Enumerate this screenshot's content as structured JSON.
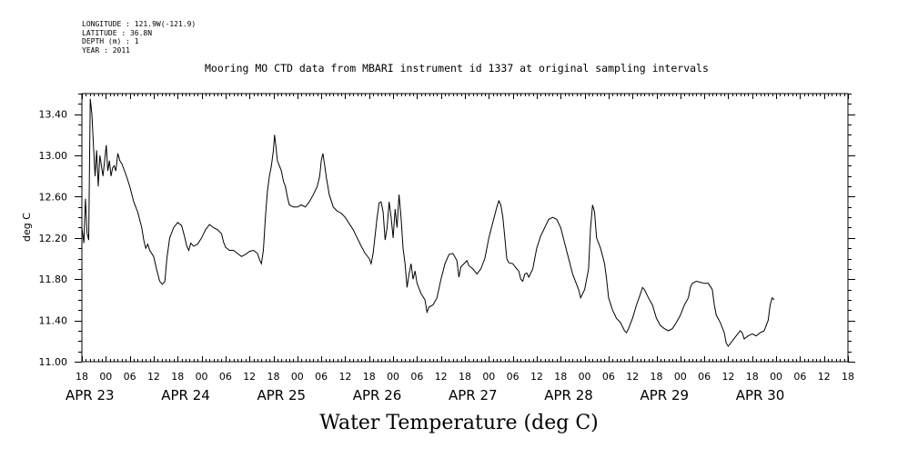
{
  "header": {
    "meta_lines": [
      "LONGITUDE : 121.9W(-121.9)",
      "LATITUDE : 36.8N",
      "DEPTH (m) : 1",
      "YEAR : 2011"
    ],
    "title": "Mooring MO CTD data from MBARI instrument id 1337 at original sampling intervals"
  },
  "chart_data": {
    "type": "line",
    "title": "Mooring MO CTD data from MBARI instrument id 1337 at original sampling intervals",
    "xlabel": "Water Temperature (deg C)",
    "ylabel": "deg C",
    "x_units": "hours since APR 22 18:00 (2011)",
    "xlim": [
      0,
      192
    ],
    "ylim": [
      11.0,
      13.6
    ],
    "y_ticks": [
      11.0,
      11.4,
      11.8,
      12.2,
      12.6,
      13.0,
      13.4
    ],
    "y_tick_labels": [
      "11.00",
      "11.40",
      "11.80",
      "12.20",
      "12.60",
      "13.00",
      "13.40"
    ],
    "x_hour_ticks": [
      0,
      6,
      12,
      18,
      24,
      30,
      36,
      42,
      48,
      54,
      60,
      66,
      72,
      78,
      84,
      90,
      96,
      102,
      108,
      114,
      120,
      126,
      132,
      138,
      144,
      150,
      156,
      162,
      168,
      174,
      180,
      186,
      192
    ],
    "x_hour_labels": [
      "18",
      "00",
      "06",
      "12",
      "18",
      "00",
      "06",
      "12",
      "18",
      "00",
      "06",
      "12",
      "18",
      "00",
      "06",
      "12",
      "18",
      "00",
      "06",
      "12",
      "18",
      "00",
      "06",
      "12",
      "18",
      "00",
      "06",
      "12",
      "18",
      "00",
      "06",
      "12",
      "18"
    ],
    "x_day_labels": [
      {
        "label": "APR 23",
        "hour": 0
      },
      {
        "label": "APR 24",
        "hour": 24
      },
      {
        "label": "APR 25",
        "hour": 48
      },
      {
        "label": "APR 26",
        "hour": 72
      },
      {
        "label": "APR 27",
        "hour": 96
      },
      {
        "label": "APR 28",
        "hour": 120
      },
      {
        "label": "APR 29",
        "hour": 144
      },
      {
        "label": "APR 30",
        "hour": 168
      }
    ],
    "grid": false,
    "series": [
      {
        "points": [
          [
            0,
            12.3
          ],
          [
            0.5,
            12.15
          ],
          [
            0.9,
            12.58
          ],
          [
            1.3,
            12.25
          ],
          [
            1.7,
            12.18
          ],
          [
            2.1,
            13.55
          ],
          [
            2.5,
            13.4
          ],
          [
            2.9,
            13.1
          ],
          [
            3.3,
            12.8
          ],
          [
            3.7,
            13.05
          ],
          [
            4.1,
            12.7
          ],
          [
            4.5,
            13.0
          ],
          [
            4.9,
            12.9
          ],
          [
            5.3,
            12.8
          ],
          [
            5.7,
            12.95
          ],
          [
            6.1,
            13.1
          ],
          [
            6.5,
            12.85
          ],
          [
            6.9,
            12.95
          ],
          [
            7.3,
            12.8
          ],
          [
            7.7,
            12.88
          ],
          [
            8.1,
            12.9
          ],
          [
            8.5,
            12.85
          ],
          [
            9.0,
            13.02
          ],
          [
            9.5,
            12.95
          ],
          [
            10.0,
            12.92
          ],
          [
            11,
            12.82
          ],
          [
            12,
            12.7
          ],
          [
            13,
            12.55
          ],
          [
            14,
            12.45
          ],
          [
            15,
            12.3
          ],
          [
            15.5,
            12.18
          ],
          [
            16,
            12.1
          ],
          [
            16.5,
            12.14
          ],
          [
            17,
            12.08
          ],
          [
            18,
            12.02
          ],
          [
            18.7,
            11.9
          ],
          [
            19.5,
            11.78
          ],
          [
            20.2,
            11.75
          ],
          [
            20.8,
            11.78
          ],
          [
            21.3,
            12.0
          ],
          [
            22,
            12.2
          ],
          [
            23,
            12.3
          ],
          [
            24,
            12.35
          ],
          [
            25,
            12.32
          ],
          [
            25.7,
            12.22
          ],
          [
            26.3,
            12.12
          ],
          [
            26.8,
            12.08
          ],
          [
            27.3,
            12.15
          ],
          [
            28,
            12.12
          ],
          [
            29,
            12.14
          ],
          [
            30,
            12.2
          ],
          [
            31,
            12.28
          ],
          [
            32,
            12.33
          ],
          [
            33,
            12.3
          ],
          [
            34,
            12.28
          ],
          [
            35,
            12.24
          ],
          [
            35.5,
            12.16
          ],
          [
            36,
            12.11
          ],
          [
            37,
            12.08
          ],
          [
            38,
            12.08
          ],
          [
            39,
            12.05
          ],
          [
            40,
            12.02
          ],
          [
            41,
            12.04
          ],
          [
            42,
            12.07
          ],
          [
            43,
            12.08
          ],
          [
            44,
            12.05
          ],
          [
            44.5,
            11.99
          ],
          [
            45,
            11.95
          ],
          [
            45.5,
            12.08
          ],
          [
            46,
            12.4
          ],
          [
            46.5,
            12.65
          ],
          [
            47,
            12.8
          ],
          [
            47.5,
            12.9
          ],
          [
            48,
            13.05
          ],
          [
            48.3,
            13.2
          ],
          [
            48.6,
            13.1
          ],
          [
            49,
            12.95
          ],
          [
            49.5,
            12.9
          ],
          [
            50,
            12.85
          ],
          [
            50.5,
            12.75
          ],
          [
            51,
            12.7
          ],
          [
            51.5,
            12.6
          ],
          [
            52,
            12.52
          ],
          [
            53,
            12.5
          ],
          [
            54,
            12.5
          ],
          [
            55,
            12.52
          ],
          [
            56,
            12.5
          ],
          [
            57,
            12.55
          ],
          [
            58,
            12.62
          ],
          [
            59,
            12.7
          ],
          [
            59.6,
            12.8
          ],
          [
            60,
            12.95
          ],
          [
            60.4,
            13.02
          ],
          [
            60.8,
            12.92
          ],
          [
            61.3,
            12.78
          ],
          [
            62,
            12.62
          ],
          [
            63,
            12.5
          ],
          [
            64,
            12.46
          ],
          [
            65,
            12.44
          ],
          [
            66,
            12.4
          ],
          [
            67,
            12.34
          ],
          [
            68,
            12.28
          ],
          [
            69,
            12.2
          ],
          [
            70,
            12.12
          ],
          [
            71,
            12.05
          ],
          [
            72,
            12.0
          ],
          [
            72.5,
            11.95
          ],
          [
            73,
            12.05
          ],
          [
            74,
            12.4
          ],
          [
            74.5,
            12.54
          ],
          [
            75,
            12.55
          ],
          [
            75.5,
            12.45
          ],
          [
            76,
            12.18
          ],
          [
            76.5,
            12.3
          ],
          [
            77,
            12.55
          ],
          [
            77.5,
            12.4
          ],
          [
            78,
            12.2
          ],
          [
            78.5,
            12.48
          ],
          [
            79,
            12.3
          ],
          [
            79.5,
            12.62
          ],
          [
            80,
            12.4
          ],
          [
            80.5,
            12.1
          ],
          [
            81,
            11.95
          ],
          [
            81.5,
            11.72
          ],
          [
            82,
            11.85
          ],
          [
            82.5,
            11.95
          ],
          [
            83,
            11.8
          ],
          [
            83.5,
            11.88
          ],
          [
            84,
            11.76
          ],
          [
            85,
            11.66
          ],
          [
            86,
            11.6
          ],
          [
            86.5,
            11.48
          ],
          [
            87,
            11.53
          ],
          [
            88,
            11.55
          ],
          [
            89,
            11.62
          ],
          [
            90,
            11.8
          ],
          [
            91,
            11.95
          ],
          [
            92,
            12.04
          ],
          [
            93,
            12.05
          ],
          [
            94,
            11.98
          ],
          [
            94.5,
            11.82
          ],
          [
            95,
            11.92
          ],
          [
            96,
            11.96
          ],
          [
            96.5,
            11.98
          ],
          [
            97,
            11.93
          ],
          [
            98,
            11.9
          ],
          [
            99,
            11.85
          ],
          [
            100,
            11.9
          ],
          [
            101,
            12.0
          ],
          [
            102,
            12.2
          ],
          [
            103,
            12.35
          ],
          [
            104,
            12.5
          ],
          [
            104.5,
            12.56
          ],
          [
            105,
            12.52
          ],
          [
            105.5,
            12.4
          ],
          [
            106,
            12.2
          ],
          [
            106.5,
            12.0
          ],
          [
            107,
            11.96
          ],
          [
            108,
            11.95
          ],
          [
            109,
            11.9
          ],
          [
            109.5,
            11.88
          ],
          [
            110,
            11.8
          ],
          [
            110.5,
            11.78
          ],
          [
            111,
            11.85
          ],
          [
            111.5,
            11.86
          ],
          [
            112,
            11.82
          ],
          [
            113,
            11.9
          ],
          [
            114,
            12.1
          ],
          [
            115,
            12.22
          ],
          [
            116,
            12.3
          ],
          [
            117,
            12.38
          ],
          [
            118,
            12.4
          ],
          [
            119,
            12.38
          ],
          [
            120,
            12.3
          ],
          [
            121,
            12.15
          ],
          [
            122,
            12.0
          ],
          [
            123,
            11.85
          ],
          [
            124,
            11.75
          ],
          [
            124.5,
            11.7
          ],
          [
            125,
            11.62
          ],
          [
            125.5,
            11.66
          ],
          [
            126,
            11.7
          ],
          [
            126.5,
            11.8
          ],
          [
            127,
            11.9
          ],
          [
            127.5,
            12.3
          ],
          [
            128,
            12.52
          ],
          [
            128.5,
            12.45
          ],
          [
            129,
            12.2
          ],
          [
            130,
            12.1
          ],
          [
            131,
            11.95
          ],
          [
            131.5,
            11.8
          ],
          [
            132,
            11.62
          ],
          [
            133,
            11.5
          ],
          [
            134,
            11.42
          ],
          [
            135,
            11.38
          ],
          [
            136,
            11.3
          ],
          [
            136.5,
            11.28
          ],
          [
            137,
            11.32
          ],
          [
            138,
            11.42
          ],
          [
            139,
            11.55
          ],
          [
            140,
            11.66
          ],
          [
            140.5,
            11.72
          ],
          [
            141,
            11.7
          ],
          [
            142,
            11.62
          ],
          [
            143,
            11.55
          ],
          [
            144,
            11.42
          ],
          [
            145,
            11.35
          ],
          [
            146,
            11.32
          ],
          [
            147,
            11.3
          ],
          [
            148,
            11.32
          ],
          [
            149,
            11.38
          ],
          [
            150,
            11.45
          ],
          [
            151,
            11.55
          ],
          [
            152,
            11.62
          ],
          [
            152.5,
            11.72
          ],
          [
            153,
            11.76
          ],
          [
            154,
            11.78
          ],
          [
            155,
            11.77
          ],
          [
            156,
            11.76
          ],
          [
            157,
            11.76
          ],
          [
            158,
            11.7
          ],
          [
            158.5,
            11.55
          ],
          [
            159,
            11.45
          ],
          [
            160,
            11.38
          ],
          [
            161,
            11.28
          ],
          [
            161.5,
            11.18
          ],
          [
            162,
            11.15
          ],
          [
            163,
            11.2
          ],
          [
            164,
            11.25
          ],
          [
            165,
            11.3
          ],
          [
            165.5,
            11.28
          ],
          [
            166,
            11.22
          ],
          [
            167,
            11.25
          ],
          [
            168,
            11.27
          ],
          [
            169,
            11.25
          ],
          [
            170,
            11.28
          ],
          [
            171,
            11.3
          ],
          [
            172,
            11.4
          ],
          [
            172.5,
            11.55
          ],
          [
            173,
            11.62
          ],
          [
            173.5,
            11.6
          ]
        ]
      }
    ]
  }
}
